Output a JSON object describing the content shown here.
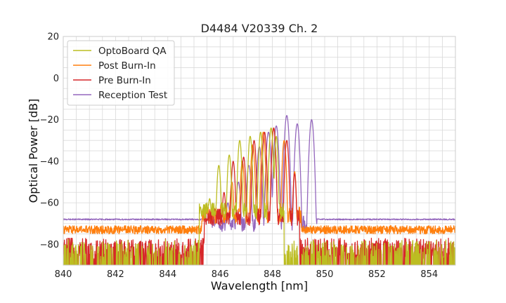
{
  "chart_data": {
    "type": "line",
    "title": "D4484 V20339 Ch. 2",
    "xlabel": "Wavelength [nm]",
    "ylabel": "Optical Power [dB]",
    "xlim": [
      840,
      855
    ],
    "ylim": [
      -90,
      20
    ],
    "xticks": [
      "840",
      "842",
      "844",
      "846",
      "848",
      "850",
      "852",
      "854"
    ],
    "yticks": [
      "20",
      "0",
      "−20",
      "−40",
      "−60",
      "−80"
    ],
    "grid": true,
    "legend_position": "top-left",
    "series": [
      {
        "name": "OptoBoard QA",
        "color": "#bcbd22",
        "noise_floor": -84,
        "noise_spread": 9,
        "peaks": [
          {
            "x": 845.25,
            "y": -62,
            "w": 0.1
          },
          {
            "x": 845.6,
            "y": -58,
            "w": 0.12
          },
          {
            "x": 845.95,
            "y": -42,
            "w": 0.12
          },
          {
            "x": 846.35,
            "y": -37,
            "w": 0.12
          },
          {
            "x": 846.75,
            "y": -30,
            "w": 0.12
          },
          {
            "x": 847.15,
            "y": -28,
            "w": 0.12
          },
          {
            "x": 847.55,
            "y": -26,
            "w": 0.12
          },
          {
            "x": 847.95,
            "y": -24,
            "w": 0.12
          },
          {
            "x": 848.15,
            "y": -28,
            "w": 0.1
          }
        ],
        "band": [
          845.2,
          848.45
        ],
        "band_floor": -60
      },
      {
        "name": "Post Burn-In",
        "color": "#ff7f0e",
        "noise_floor": -73,
        "noise_spread": 4,
        "peaks": [
          {
            "x": 845.35,
            "y": -68,
            "w": 0.12
          },
          {
            "x": 845.7,
            "y": -66,
            "w": 0.12
          },
          {
            "x": 846.05,
            "y": -60,
            "w": 0.12
          },
          {
            "x": 846.45,
            "y": -50,
            "w": 0.12
          },
          {
            "x": 846.85,
            "y": -40,
            "w": 0.12
          },
          {
            "x": 847.25,
            "y": -32,
            "w": 0.12
          },
          {
            "x": 847.65,
            "y": -26,
            "w": 0.12
          },
          {
            "x": 848.05,
            "y": -24,
            "w": 0.12
          },
          {
            "x": 848.45,
            "y": -30,
            "w": 0.12
          },
          {
            "x": 848.85,
            "y": -45,
            "w": 0.1
          }
        ],
        "band": [
          845.3,
          849.1
        ],
        "band_floor": -62
      },
      {
        "name": "Pre Burn-In",
        "color": "#d62728",
        "noise_floor": -84,
        "noise_spread": 10,
        "peaks": [
          {
            "x": 845.45,
            "y": -70,
            "w": 0.12
          },
          {
            "x": 845.8,
            "y": -63,
            "w": 0.12
          },
          {
            "x": 846.15,
            "y": -55,
            "w": 0.12
          },
          {
            "x": 846.5,
            "y": -40,
            "w": 0.12
          },
          {
            "x": 846.9,
            "y": -38,
            "w": 0.12
          },
          {
            "x": 847.3,
            "y": -30,
            "w": 0.12
          },
          {
            "x": 847.7,
            "y": -26,
            "w": 0.12
          },
          {
            "x": 848.05,
            "y": -24,
            "w": 0.12
          },
          {
            "x": 848.55,
            "y": -30,
            "w": 0.12
          },
          {
            "x": 848.85,
            "y": -46,
            "w": 0.1
          }
        ],
        "band": [
          845.4,
          849.05
        ],
        "band_floor": -63
      },
      {
        "name": "Reception Test",
        "color": "#9467bd",
        "noise_floor": -68,
        "noise_spread": 1,
        "peaks": [
          {
            "x": 845.9,
            "y": -66,
            "w": 0.14
          },
          {
            "x": 846.3,
            "y": -60,
            "w": 0.14
          },
          {
            "x": 846.7,
            "y": -50,
            "w": 0.14
          },
          {
            "x": 847.1,
            "y": -42,
            "w": 0.14
          },
          {
            "x": 847.5,
            "y": -33,
            "w": 0.14
          },
          {
            "x": 847.85,
            "y": -26,
            "w": 0.14
          },
          {
            "x": 848.15,
            "y": -23,
            "w": 0.14
          },
          {
            "x": 848.55,
            "y": -18,
            "w": 0.14
          },
          {
            "x": 848.95,
            "y": -22,
            "w": 0.14
          },
          {
            "x": 849.5,
            "y": -20,
            "w": 0.14
          }
        ],
        "band": [
          845.7,
          849.7
        ],
        "band_floor": -66
      }
    ]
  }
}
